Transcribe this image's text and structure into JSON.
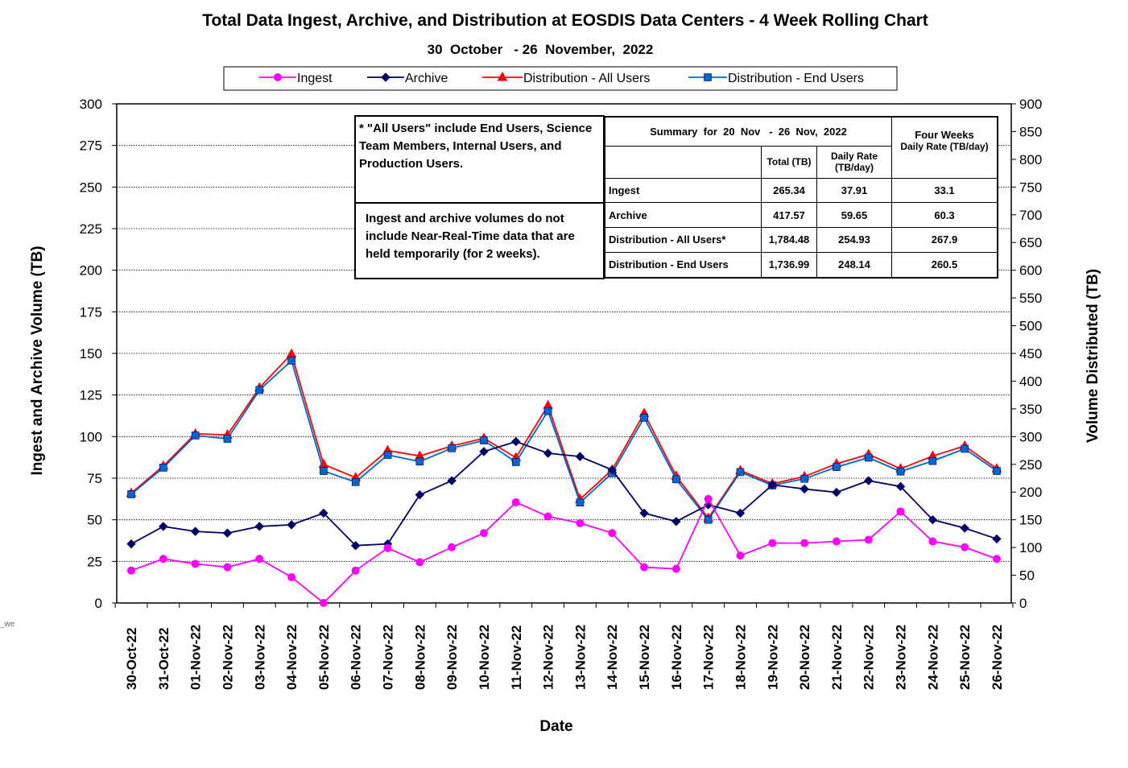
{
  "chart_data": {
    "type": "line",
    "title": "Total Data Ingest, Archive, and  Distribution at EOSDIS Data Centers - 4 Week Rolling Chart",
    "subtitle": "30  October   - 26  November,  2022",
    "xlabel": "Date",
    "ylabel_left": "Ingest and Archive Volume (TB)",
    "ylabel_right": "Volume Distributed (TB)",
    "ylim_left": [
      0,
      300
    ],
    "ylim_right": [
      0,
      900
    ],
    "yticks_left": [
      "0",
      "25",
      "50",
      "75",
      "100",
      "125",
      "150",
      "175",
      "200",
      "225",
      "250",
      "275",
      "300"
    ],
    "yticks_right": [
      "0",
      "50",
      "100",
      "150",
      "200",
      "250",
      "300",
      "350",
      "400",
      "450",
      "500",
      "550",
      "600",
      "650",
      "700",
      "750",
      "800",
      "850",
      "900"
    ],
    "grid": true,
    "legend_position": "top",
    "categories": [
      "30-Oct-22",
      "31-Oct-22",
      "01-Nov-22",
      "02-Nov-22",
      "03-Nov-22",
      "04-Nov-22",
      "05-Nov-22",
      "06-Nov-22",
      "07-Nov-22",
      "08-Nov-22",
      "09-Nov-22",
      "10-Nov-22",
      "11-Nov-22",
      "12-Nov-22",
      "13-Nov-22",
      "14-Nov-22",
      "15-Nov-22",
      "16-Nov-22",
      "17-Nov-22",
      "18-Nov-22",
      "19-Nov-22",
      "20-Nov-22",
      "21-Nov-22",
      "22-Nov-22",
      "23-Nov-22",
      "24-Nov-22",
      "25-Nov-22",
      "26-Nov-22"
    ],
    "series": [
      {
        "name": "Ingest",
        "axis": "left",
        "color": "#ff00ff",
        "marker": "circle",
        "values": [
          19.5,
          26.5,
          23.5,
          21.5,
          26.5,
          15.5,
          0,
          19.5,
          33,
          24.5,
          33.5,
          42,
          60.5,
          52,
          48,
          42,
          21.5,
          20.5,
          62.5,
          28.5,
          36,
          36,
          37,
          38,
          55,
          37,
          33.5,
          26.5
        ]
      },
      {
        "name": "Archive",
        "axis": "left",
        "color": "#000066",
        "marker": "diamond",
        "values": [
          35.5,
          46,
          43,
          42,
          46,
          47,
          54,
          34.5,
          35.5,
          65,
          73.5,
          91,
          97,
          90,
          88,
          80,
          54,
          49,
          59,
          54,
          71,
          68.5,
          66.5,
          73.5,
          70,
          50,
          45,
          38.5
        ]
      },
      {
        "name": "Distribution - All Users",
        "axis": "right",
        "color": "#ff0000",
        "marker": "triangle",
        "values": [
          198,
          247,
          305,
          303,
          388,
          449,
          250,
          226,
          275,
          265,
          283,
          297,
          262,
          356,
          187,
          240,
          342,
          229,
          153,
          239,
          215,
          228,
          251,
          268,
          242,
          265,
          283,
          242
        ]
      },
      {
        "name": "Distribution - End Users",
        "axis": "right",
        "color": "#0066cc",
        "marker": "square",
        "values": [
          196,
          244,
          302,
          296,
          384,
          437,
          238,
          218,
          267,
          255,
          279,
          293,
          254,
          346,
          181,
          234,
          334,
          223,
          150,
          236,
          212,
          224,
          245,
          262,
          237,
          256,
          278,
          238
        ]
      }
    ]
  },
  "notes": {
    "all_users": "* \"All Users\" include End Users, Science Team Members,  Internal Users, and Production Users.",
    "nrt": "Ingest and archive volumes do not include Near-Real-Time data that are held temporarily (for 2 weeks)."
  },
  "summary": {
    "heading": "Summary  for  20  Nov   -  26  Nov,  2022",
    "four_weeks": "Four Weeks",
    "col_total": "Total (TB)",
    "col_daily": "Daily Rate (TB/day)",
    "col_4w_daily": "Daily Rate (TB/day)",
    "rows": [
      {
        "label": "Ingest",
        "total": "265.34",
        "daily": "37.91",
        "four_week": "33.1"
      },
      {
        "label": "Archive",
        "total": "417.57",
        "daily": "59.65",
        "four_week": "60.3"
      },
      {
        "label": "Distribution - All Users*",
        "total": "1,784.48",
        "daily": "254.93",
        "four_week": "267.9"
      },
      {
        "label": "Distribution - End Users",
        "total": "1,736.99",
        "daily": "248.14",
        "four_week": "260.5"
      }
    ]
  },
  "edge_fragment": "_we"
}
